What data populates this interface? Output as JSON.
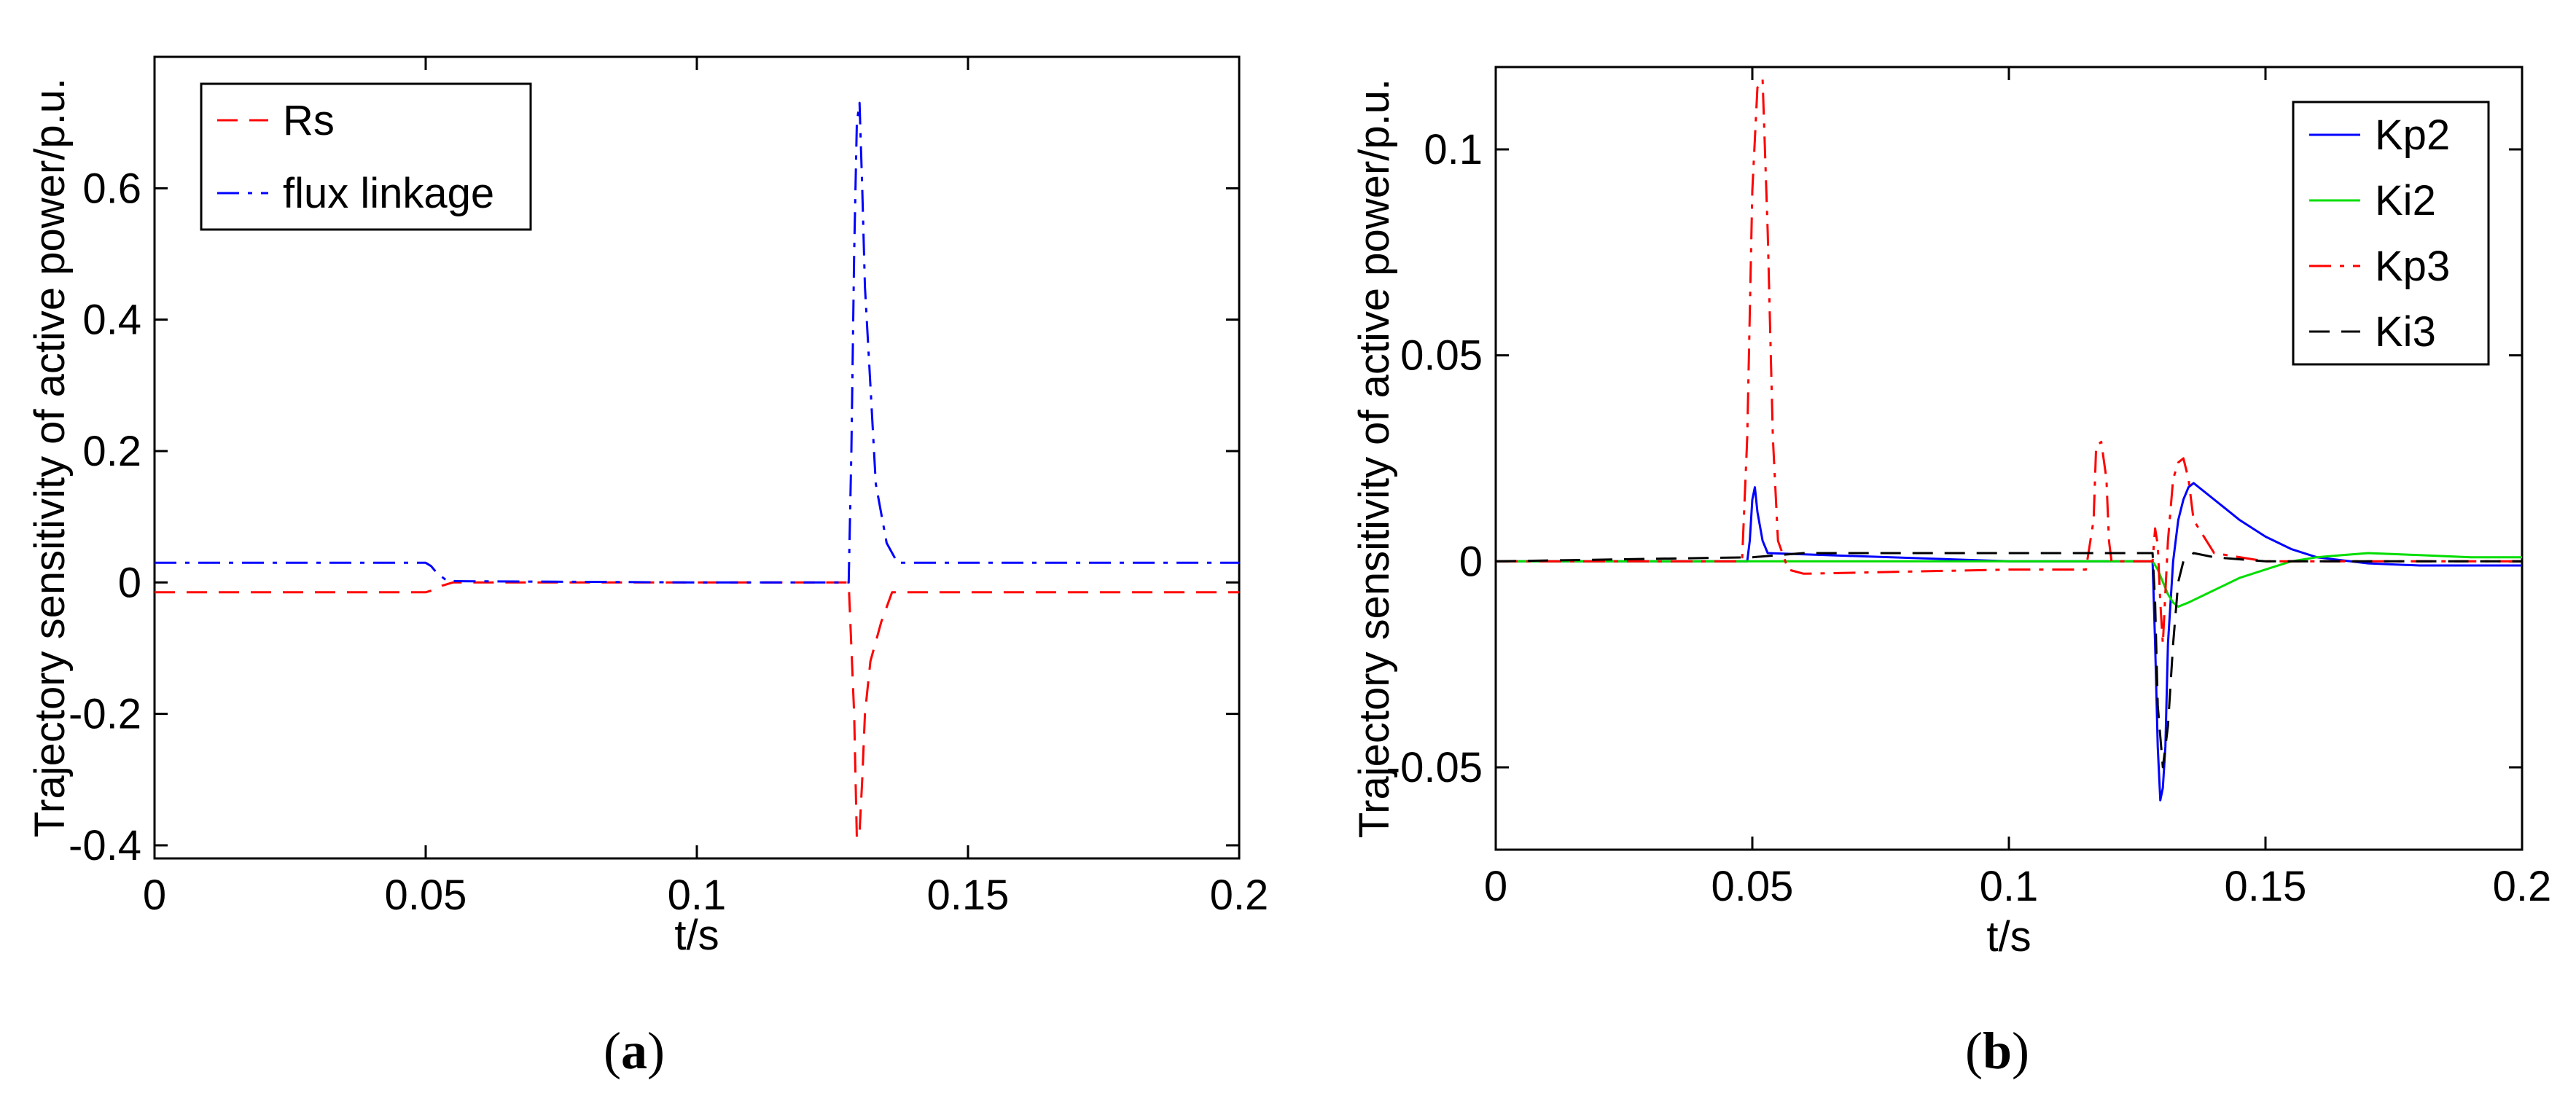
{
  "chart_data": [
    {
      "type": "line",
      "caption_letter": "a",
      "ylabel": "Trajectory sensitivity of active power/p.u.",
      "xlabel": "t/s",
      "xlim": [
        0,
        0.2
      ],
      "ylim": [
        -0.42,
        0.8
      ],
      "xticks": [
        "0",
        "0.05",
        "0.1",
        "0.15",
        "0.2"
      ],
      "yticks": [
        "-0.4",
        "-0.2",
        "0",
        "0.2",
        "0.4",
        "0.6"
      ],
      "legend_position": "top-left",
      "series": [
        {
          "name": "Rs",
          "color": "#ff0000",
          "dash": "dashed",
          "x": [
            0,
            0.05,
            0.052,
            0.053,
            0.055,
            0.1,
            0.128,
            0.129,
            0.1295,
            0.13,
            0.1305,
            0.131,
            0.132,
            0.134,
            0.136,
            0.14,
            0.2
          ],
          "y": [
            -0.015,
            -0.015,
            -0.01,
            -0.005,
            0.0,
            0.0,
            0.0,
            -0.2,
            -0.39,
            -0.38,
            -0.3,
            -0.2,
            -0.12,
            -0.06,
            -0.015,
            -0.015,
            -0.015
          ]
        },
        {
          "name": "flux linkage",
          "color": "#0000ff",
          "dash": "dashdot",
          "x": [
            0,
            0.05,
            0.051,
            0.052,
            0.054,
            0.1,
            0.128,
            0.1285,
            0.129,
            0.1295,
            0.13,
            0.1305,
            0.131,
            0.132,
            0.133,
            0.135,
            0.137,
            0.2
          ],
          "y": [
            0.03,
            0.03,
            0.025,
            0.015,
            0.002,
            0.0,
            0.0,
            0.2,
            0.5,
            0.7,
            0.73,
            0.6,
            0.45,
            0.3,
            0.15,
            0.06,
            0.03,
            0.03
          ]
        }
      ]
    },
    {
      "type": "line",
      "caption_letter": "b",
      "ylabel": "Trajectory sensitivity of active power/p.u.",
      "xlabel": "t/s",
      "xlim": [
        0,
        0.2
      ],
      "ylim": [
        -0.07,
        0.12
      ],
      "xticks": [
        "0",
        "0.05",
        "0.1",
        "0.15",
        "0.2"
      ],
      "yticks": [
        "-0.05",
        "0",
        "0.05",
        "0.1"
      ],
      "legend_position": "top-right",
      "series": [
        {
          "name": "Kp2",
          "color": "#0000ff",
          "dash": "solid",
          "x": [
            0,
            0.049,
            0.0495,
            0.05,
            0.0505,
            0.051,
            0.052,
            0.053,
            0.1,
            0.128,
            0.1285,
            0.129,
            0.1295,
            0.13,
            0.1305,
            0.131,
            0.132,
            0.133,
            0.134,
            0.135,
            0.136,
            0.14,
            0.145,
            0.15,
            0.155,
            0.16,
            0.17,
            0.18,
            0.2
          ],
          "y": [
            0,
            0,
            0.005,
            0.015,
            0.018,
            0.012,
            0.005,
            0.002,
            0.0,
            0.0,
            -0.02,
            -0.045,
            -0.058,
            -0.055,
            -0.045,
            -0.02,
            0.0,
            0.01,
            0.015,
            0.018,
            0.019,
            0.015,
            0.01,
            0.006,
            0.003,
            0.001,
            -0.0005,
            -0.001,
            -0.001
          ]
        },
        {
          "name": "Ki2",
          "color": "#00dd00",
          "dash": "solid",
          "x": [
            0,
            0.1,
            0.128,
            0.129,
            0.13,
            0.131,
            0.132,
            0.133,
            0.135,
            0.14,
            0.145,
            0.15,
            0.155,
            0.16,
            0.165,
            0.17,
            0.18,
            0.19,
            0.2
          ],
          "y": [
            0,
            0,
            0,
            -0.002,
            -0.005,
            -0.008,
            -0.01,
            -0.011,
            -0.01,
            -0.007,
            -0.004,
            -0.002,
            0.0,
            0.001,
            0.0015,
            0.002,
            0.0015,
            0.001,
            0.001
          ]
        },
        {
          "name": "Kp3",
          "color": "#ff0000",
          "dash": "dashdot",
          "x": [
            0,
            0.048,
            0.049,
            0.05,
            0.051,
            0.052,
            0.053,
            0.054,
            0.055,
            0.057,
            0.06,
            0.1,
            0.115,
            0.1165,
            0.117,
            0.118,
            0.119,
            0.1195,
            0.12,
            0.128,
            0.1285,
            0.129,
            0.1295,
            0.13,
            0.131,
            0.132,
            0.133,
            0.134,
            0.135,
            0.136,
            0.14,
            0.15,
            0.2
          ],
          "y": [
            0,
            0,
            0.03,
            0.09,
            0.115,
            0.117,
            0.08,
            0.03,
            0.005,
            -0.002,
            -0.003,
            -0.002,
            -0.002,
            0.01,
            0.028,
            0.029,
            0.02,
            0.005,
            0.0,
            0.0,
            0.008,
            0.004,
            -0.01,
            -0.02,
            0.005,
            0.02,
            0.024,
            0.025,
            0.02,
            0.01,
            0.002,
            0.0,
            0.0
          ]
        },
        {
          "name": "Ki3",
          "color": "#000000",
          "dash": "dashed",
          "x": [
            0,
            0.05,
            0.06,
            0.1,
            0.128,
            0.1285,
            0.129,
            0.13,
            0.131,
            0.132,
            0.133,
            0.134,
            0.136,
            0.14,
            0.15,
            0.16,
            0.2
          ],
          "y": [
            0,
            0.001,
            0.002,
            0.002,
            0.002,
            -0.01,
            -0.035,
            -0.05,
            -0.04,
            -0.02,
            -0.005,
            0.0,
            0.002,
            0.001,
            0.0,
            0.0,
            0.0
          ]
        }
      ]
    }
  ]
}
